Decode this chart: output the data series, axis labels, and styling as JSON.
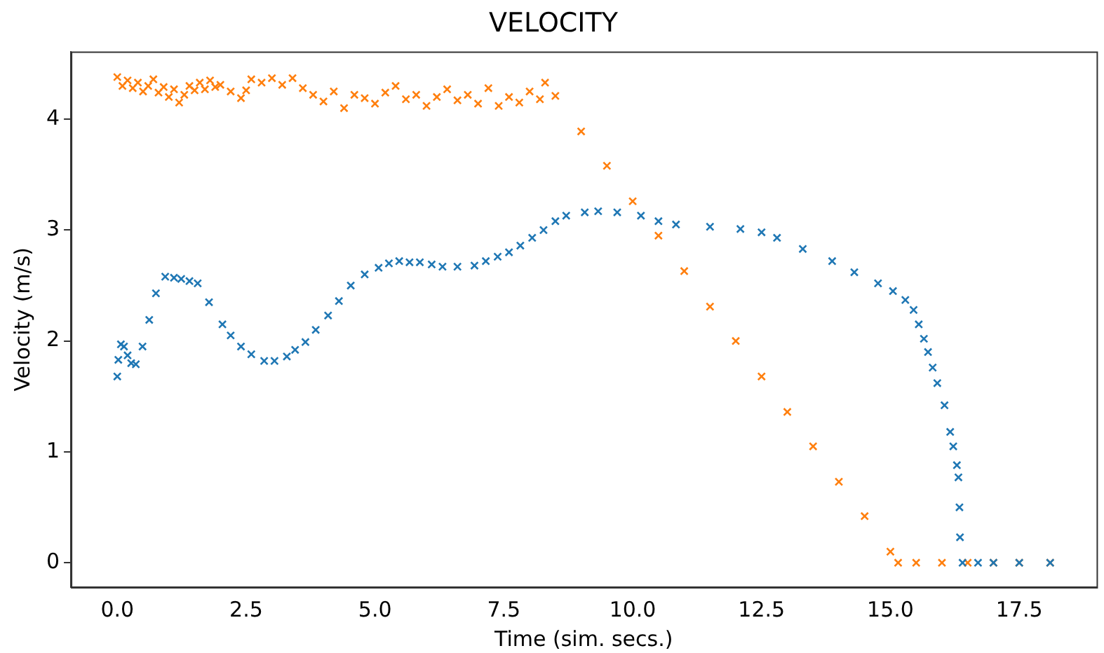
{
  "chart_data": {
    "type": "scatter",
    "title": "VELOCITY",
    "xlabel": "Time (sim. secs.)",
    "ylabel": "Velocity (m/s)",
    "marker": "cross",
    "grid": false,
    "legend": false,
    "xlim": [
      -0.9,
      19.0
    ],
    "xticks": [
      {
        "value": 0,
        "label": "0.0"
      },
      {
        "value": 2.5,
        "label": "2.5"
      },
      {
        "value": 5,
        "label": "5.0"
      },
      {
        "value": 7.5,
        "label": "7.5"
      },
      {
        "value": 10,
        "label": "10.0"
      },
      {
        "value": 12.5,
        "label": "12.5"
      },
      {
        "value": 15,
        "label": "15.0"
      },
      {
        "value": 17.5,
        "label": "17.5"
      }
    ],
    "ylim": [
      -0.22,
      4.61
    ],
    "yticks": [
      0,
      1,
      2,
      3,
      4
    ],
    "series": [
      {
        "color": "#1f77b4",
        "x": [
          0,
          0.02,
          0.07,
          0.13,
          0.2,
          0.27,
          0.36,
          0.49,
          0.62,
          0.75,
          0.93,
          1.1,
          1.24,
          1.4,
          1.56,
          1.78,
          2.04,
          2.2,
          2.4,
          2.6,
          2.85,
          3.05,
          3.29,
          3.45,
          3.65,
          3.85,
          4.09,
          4.3,
          4.53,
          4.8,
          5.07,
          5.27,
          5.47,
          5.67,
          5.87,
          6.1,
          6.31,
          6.6,
          6.93,
          7.15,
          7.38,
          7.6,
          7.82,
          8.05,
          8.27,
          8.5,
          8.71,
          9.07,
          9.33,
          9.7,
          10.16,
          10.5,
          10.84,
          11.5,
          12.09,
          12.5,
          12.8,
          13.3,
          13.87,
          14.3,
          14.76,
          15.05,
          15.29,
          15.45,
          15.55,
          15.65,
          15.73,
          15.82,
          15.91,
          16.05,
          16.16,
          16.22,
          16.29,
          16.32,
          16.34,
          16.35,
          16.4,
          16.7,
          17.0,
          17.5,
          18.1
        ],
        "values": [
          1.68,
          1.83,
          1.97,
          1.95,
          1.87,
          1.8,
          1.79,
          1.95,
          2.19,
          2.43,
          2.58,
          2.57,
          2.56,
          2.54,
          2.52,
          2.35,
          2.15,
          2.05,
          1.95,
          1.88,
          1.82,
          1.82,
          1.86,
          1.92,
          1.99,
          2.1,
          2.23,
          2.36,
          2.5,
          2.6,
          2.66,
          2.7,
          2.72,
          2.71,
          2.71,
          2.69,
          2.67,
          2.67,
          2.68,
          2.72,
          2.76,
          2.8,
          2.86,
          2.93,
          3.0,
          3.08,
          3.13,
          3.16,
          3.17,
          3.16,
          3.13,
          3.08,
          3.05,
          3.03,
          3.01,
          2.98,
          2.93,
          2.83,
          2.72,
          2.62,
          2.52,
          2.45,
          2.37,
          2.28,
          2.15,
          2.02,
          1.9,
          1.76,
          1.62,
          1.42,
          1.18,
          1.05,
          0.88,
          0.77,
          0.5,
          0.23,
          0,
          0,
          0,
          0,
          0
        ]
      },
      {
        "color": "#ff7f0e",
        "x": [
          0,
          0.1,
          0.2,
          0.3,
          0.4,
          0.5,
          0.6,
          0.7,
          0.8,
          0.9,
          1.0,
          1.1,
          1.2,
          1.3,
          1.4,
          1.5,
          1.6,
          1.7,
          1.8,
          1.9,
          2.0,
          2.2,
          2.4,
          2.5,
          2.6,
          2.8,
          3.0,
          3.2,
          3.4,
          3.6,
          3.8,
          4.0,
          4.2,
          4.4,
          4.6,
          4.8,
          5.0,
          5.2,
          5.4,
          5.6,
          5.8,
          6.0,
          6.2,
          6.4,
          6.6,
          6.8,
          7.0,
          7.2,
          7.4,
          7.6,
          7.8,
          8.0,
          8.2,
          8.3,
          8.5,
          9.0,
          9.5,
          10.0,
          10.5,
          11.0,
          11.5,
          12.0,
          12.5,
          13.0,
          13.5,
          14.0,
          14.5,
          15.0,
          15.15,
          15.5,
          16.0,
          16.5,
          17.0,
          17.5,
          18.1
        ],
        "values": [
          4.38,
          4.3,
          4.35,
          4.28,
          4.33,
          4.25,
          4.3,
          4.36,
          4.24,
          4.29,
          4.2,
          4.27,
          4.15,
          4.22,
          4.3,
          4.26,
          4.33,
          4.27,
          4.35,
          4.29,
          4.31,
          4.25,
          4.19,
          4.26,
          4.36,
          4.33,
          4.37,
          4.31,
          4.37,
          4.28,
          4.22,
          4.16,
          4.25,
          4.1,
          4.22,
          4.19,
          4.14,
          4.24,
          4.3,
          4.18,
          4.22,
          4.12,
          4.2,
          4.27,
          4.17,
          4.22,
          4.14,
          4.28,
          4.12,
          4.2,
          4.15,
          4.25,
          4.18,
          4.33,
          4.21,
          3.89,
          3.58,
          3.26,
          2.95,
          2.63,
          2.31,
          2.0,
          1.68,
          1.36,
          1.05,
          0.73,
          0.42,
          0.1,
          0,
          0,
          0,
          0,
          0,
          0,
          0
        ]
      }
    ]
  }
}
